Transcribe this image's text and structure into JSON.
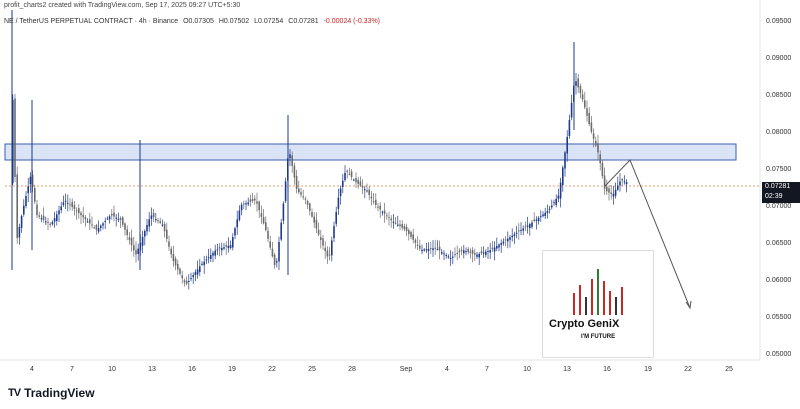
{
  "header": {
    "byline": "profit_charts2 created with TradingView.com, Sep 17, 2025 09:27 UTC+5:30",
    "symbol_info": "NE / TetherUS PERPETUAL CONTRACT · 4h · Binance",
    "open": "O0.07305",
    "high": "H0.07502",
    "low": "L0.07254",
    "close": "C0.07281",
    "change": "-0.00024 (-0.33%)"
  },
  "price_axis": {
    "ticks": [
      "0.09500",
      "0.09000",
      "0.08500",
      "0.08000",
      "0.07500",
      "0.07000",
      "0.06500",
      "0.06000",
      "0.05500",
      "0.05000"
    ]
  },
  "time_axis": {
    "ticks": [
      "4",
      "7",
      "10",
      "13",
      "16",
      "19",
      "22",
      "25",
      "28",
      "Sep",
      "4",
      "7",
      "10",
      "13",
      "16",
      "19",
      "22",
      "25"
    ]
  },
  "price_tag": {
    "price": "0.07281",
    "countdown": "02:39"
  },
  "watermark": {
    "title": "Crypto GeniX",
    "subtitle": "I'M FUTURE"
  },
  "footer": {
    "logo_text": "TradingView"
  },
  "colors": {
    "up": "#1e3a8a",
    "down": "#6b6b6b",
    "zone_fill": "#dbe4f7",
    "zone_border": "#3b5ea8",
    "price_line": "#e5a070"
  }
}
